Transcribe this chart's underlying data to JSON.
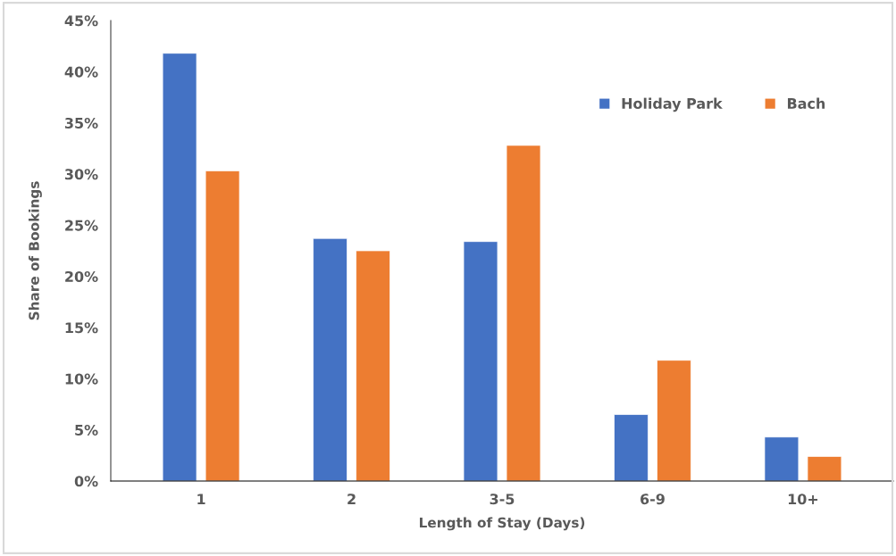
{
  "chart_data": {
    "type": "bar",
    "xlabel": "Length of Stay (Days)",
    "ylabel": "Share of Bookings",
    "categories": [
      "1",
      "2",
      "3-5",
      "6-9",
      "10+"
    ],
    "series": [
      {
        "name": "Holiday Park",
        "color": "#4472c4",
        "values": [
          41.8,
          23.7,
          23.4,
          6.5,
          4.3
        ]
      },
      {
        "name": "Bach",
        "color": "#ed7d31",
        "values": [
          30.3,
          22.5,
          32.8,
          11.8,
          2.4
        ]
      }
    ],
    "ylim": [
      0,
      45
    ],
    "yticks": [
      {
        "value": 0,
        "label": "0%"
      },
      {
        "value": 5,
        "label": "5%"
      },
      {
        "value": 10,
        "label": "10%"
      },
      {
        "value": 15,
        "label": "15%"
      },
      {
        "value": 20,
        "label": "20%"
      },
      {
        "value": 25,
        "label": "25%"
      },
      {
        "value": 30,
        "label": "30%"
      },
      {
        "value": 35,
        "label": "35%"
      },
      {
        "value": 40,
        "label": "40%"
      },
      {
        "value": 45,
        "label": "45%"
      }
    ],
    "legend": "top right",
    "grid": false
  }
}
